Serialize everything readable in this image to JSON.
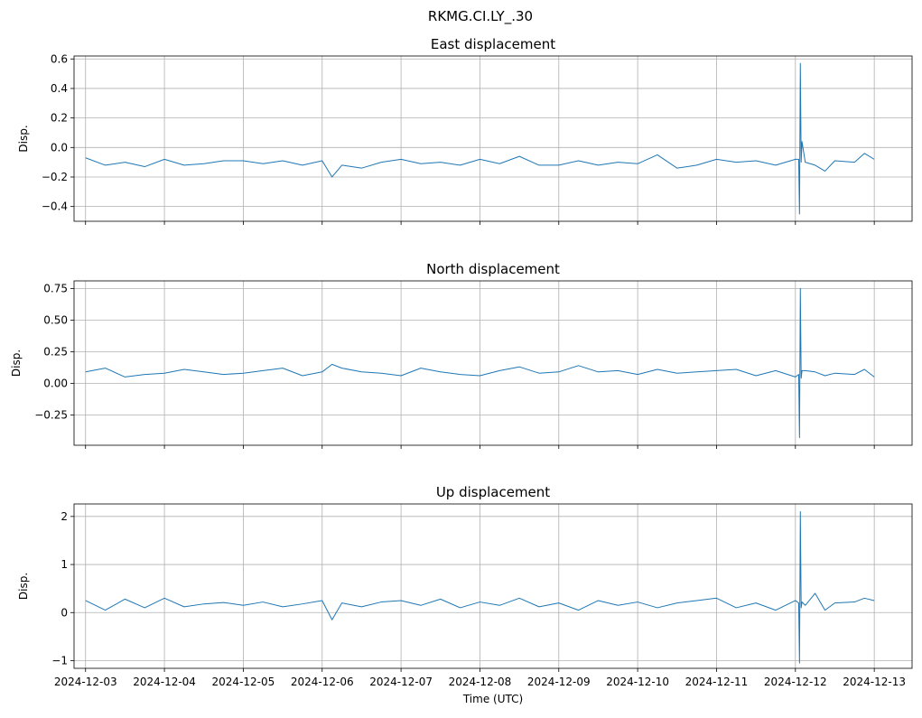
{
  "suptitle": "RKMG.CI.LY_.30",
  "chart_data": [
    {
      "type": "line",
      "title": "East displacement",
      "ylabel": "Disp.",
      "xlabel": "",
      "grid": true,
      "xlim": [
        "2024-12-02T20:30",
        "2024-12-13T11:30"
      ],
      "ylim": [
        -0.5,
        0.62
      ],
      "yticks": [
        -0.4,
        -0.2,
        0.0,
        0.2,
        0.4,
        0.6
      ],
      "ytick_labels": [
        "−0.4",
        "−0.2",
        "0.0",
        "0.2",
        "0.4",
        "0.6"
      ],
      "xticks": [
        "2024-12-03",
        "2024-12-04",
        "2024-12-05",
        "2024-12-06",
        "2024-12-07",
        "2024-12-08",
        "2024-12-09",
        "2024-12-10",
        "2024-12-11",
        "2024-12-12",
        "2024-12-13"
      ],
      "xtick_labels": [],
      "series_color": "#1f77b4",
      "series": [
        {
          "x": [
            "2024-12-03T00:00",
            "2024-12-03T06:00",
            "2024-12-03T12:00",
            "2024-12-03T18:00",
            "2024-12-04T00:00",
            "2024-12-04T06:00",
            "2024-12-04T12:00",
            "2024-12-04T18:00",
            "2024-12-05T00:00",
            "2024-12-05T06:00",
            "2024-12-05T12:00",
            "2024-12-05T18:00",
            "2024-12-06T00:00",
            "2024-12-06T03:00",
            "2024-12-06T06:00",
            "2024-12-06T12:00",
            "2024-12-06T18:00",
            "2024-12-07T00:00",
            "2024-12-07T06:00",
            "2024-12-07T12:00",
            "2024-12-07T18:00",
            "2024-12-08T00:00",
            "2024-12-08T06:00",
            "2024-12-08T12:00",
            "2024-12-08T18:00",
            "2024-12-09T00:00",
            "2024-12-09T06:00",
            "2024-12-09T12:00",
            "2024-12-09T18:00",
            "2024-12-10T00:00",
            "2024-12-10T06:00",
            "2024-12-10T12:00",
            "2024-12-10T18:00",
            "2024-12-11T00:00",
            "2024-12-11T06:00",
            "2024-12-11T12:00",
            "2024-12-11T18:00",
            "2024-12-12T00:00",
            "2024-12-12T01:00",
            "2024-12-12T01:15",
            "2024-12-12T01:30",
            "2024-12-12T01:45",
            "2024-12-12T02:00",
            "2024-12-12T03:00",
            "2024-12-12T06:00",
            "2024-12-12T09:00",
            "2024-12-12T12:00",
            "2024-12-12T18:00",
            "2024-12-12T21:00",
            "2024-12-13T00:00"
          ],
          "values": [
            -0.07,
            -0.12,
            -0.1,
            -0.13,
            -0.08,
            -0.12,
            -0.11,
            -0.09,
            -0.09,
            -0.11,
            -0.09,
            -0.12,
            -0.09,
            -0.2,
            -0.12,
            -0.14,
            -0.1,
            -0.08,
            -0.11,
            -0.1,
            -0.12,
            -0.08,
            -0.11,
            -0.06,
            -0.12,
            -0.12,
            -0.09,
            -0.12,
            -0.1,
            -0.11,
            -0.05,
            -0.14,
            -0.12,
            -0.08,
            -0.1,
            -0.09,
            -0.12,
            -0.08,
            -0.08,
            -0.45,
            0.57,
            -0.1,
            0.04,
            -0.1,
            -0.12,
            -0.16,
            -0.09,
            -0.1,
            -0.04,
            -0.08
          ]
        }
      ]
    },
    {
      "type": "line",
      "title": "North displacement",
      "ylabel": "Disp.",
      "xlabel": "",
      "grid": true,
      "xlim": [
        "2024-12-02T20:30",
        "2024-12-13T11:30"
      ],
      "ylim": [
        -0.49,
        0.81
      ],
      "yticks": [
        -0.25,
        0.0,
        0.25,
        0.5,
        0.75
      ],
      "ytick_labels": [
        "−0.25",
        "0.00",
        "0.25",
        "0.50",
        "0.75"
      ],
      "xticks": [
        "2024-12-03",
        "2024-12-04",
        "2024-12-05",
        "2024-12-06",
        "2024-12-07",
        "2024-12-08",
        "2024-12-09",
        "2024-12-10",
        "2024-12-11",
        "2024-12-12",
        "2024-12-13"
      ],
      "xtick_labels": [],
      "series_color": "#1f77b4",
      "series": [
        {
          "x": [
            "2024-12-03T00:00",
            "2024-12-03T06:00",
            "2024-12-03T12:00",
            "2024-12-03T18:00",
            "2024-12-04T00:00",
            "2024-12-04T06:00",
            "2024-12-04T12:00",
            "2024-12-04T18:00",
            "2024-12-05T00:00",
            "2024-12-05T06:00",
            "2024-12-05T12:00",
            "2024-12-05T18:00",
            "2024-12-06T00:00",
            "2024-12-06T03:00",
            "2024-12-06T06:00",
            "2024-12-06T12:00",
            "2024-12-06T18:00",
            "2024-12-07T00:00",
            "2024-12-07T06:00",
            "2024-12-07T12:00",
            "2024-12-07T18:00",
            "2024-12-08T00:00",
            "2024-12-08T06:00",
            "2024-12-08T12:00",
            "2024-12-08T18:00",
            "2024-12-09T00:00",
            "2024-12-09T06:00",
            "2024-12-09T12:00",
            "2024-12-09T18:00",
            "2024-12-10T00:00",
            "2024-12-10T06:00",
            "2024-12-10T12:00",
            "2024-12-10T18:00",
            "2024-12-11T00:00",
            "2024-12-11T06:00",
            "2024-12-11T12:00",
            "2024-12-11T18:00",
            "2024-12-12T00:00",
            "2024-12-12T01:00",
            "2024-12-12T01:15",
            "2024-12-12T01:30",
            "2024-12-12T01:45",
            "2024-12-12T02:00",
            "2024-12-12T03:00",
            "2024-12-12T06:00",
            "2024-12-12T09:00",
            "2024-12-12T12:00",
            "2024-12-12T18:00",
            "2024-12-12T21:00",
            "2024-12-13T00:00"
          ],
          "values": [
            0.09,
            0.12,
            0.05,
            0.07,
            0.08,
            0.11,
            0.09,
            0.07,
            0.08,
            0.1,
            0.12,
            0.06,
            0.09,
            0.15,
            0.12,
            0.09,
            0.08,
            0.06,
            0.12,
            0.09,
            0.07,
            0.06,
            0.1,
            0.13,
            0.08,
            0.09,
            0.14,
            0.09,
            0.1,
            0.07,
            0.11,
            0.08,
            0.09,
            0.1,
            0.11,
            0.06,
            0.1,
            0.05,
            0.07,
            -0.43,
            0.75,
            0.04,
            0.1,
            0.1,
            0.09,
            0.06,
            0.08,
            0.07,
            0.11,
            0.05
          ]
        }
      ]
    },
    {
      "type": "line",
      "title": "Up displacement",
      "ylabel": "Disp.",
      "xlabel": "Time (UTC)",
      "grid": true,
      "xlim": [
        "2024-12-02T20:30",
        "2024-12-13T11:30"
      ],
      "ylim": [
        -1.16,
        2.26
      ],
      "yticks": [
        -1,
        0,
        1,
        2
      ],
      "ytick_labels": [
        "−1",
        "0",
        "1",
        "2"
      ],
      "xticks": [
        "2024-12-03",
        "2024-12-04",
        "2024-12-05",
        "2024-12-06",
        "2024-12-07",
        "2024-12-08",
        "2024-12-09",
        "2024-12-10",
        "2024-12-11",
        "2024-12-12",
        "2024-12-13"
      ],
      "xtick_labels": [
        "2024-12-03",
        "2024-12-04",
        "2024-12-05",
        "2024-12-06",
        "2024-12-07",
        "2024-12-08",
        "2024-12-09",
        "2024-12-10",
        "2024-12-11",
        "2024-12-12",
        "2024-12-13"
      ],
      "series_color": "#1f77b4",
      "series": [
        {
          "x": [
            "2024-12-03T00:00",
            "2024-12-03T06:00",
            "2024-12-03T12:00",
            "2024-12-03T18:00",
            "2024-12-04T00:00",
            "2024-12-04T06:00",
            "2024-12-04T12:00",
            "2024-12-04T18:00",
            "2024-12-05T00:00",
            "2024-12-05T06:00",
            "2024-12-05T12:00",
            "2024-12-05T18:00",
            "2024-12-06T00:00",
            "2024-12-06T03:00",
            "2024-12-06T06:00",
            "2024-12-06T12:00",
            "2024-12-06T18:00",
            "2024-12-07T00:00",
            "2024-12-07T06:00",
            "2024-12-07T12:00",
            "2024-12-07T18:00",
            "2024-12-08T00:00",
            "2024-12-08T06:00",
            "2024-12-08T12:00",
            "2024-12-08T18:00",
            "2024-12-09T00:00",
            "2024-12-09T06:00",
            "2024-12-09T12:00",
            "2024-12-09T18:00",
            "2024-12-10T00:00",
            "2024-12-10T06:00",
            "2024-12-10T12:00",
            "2024-12-10T18:00",
            "2024-12-11T00:00",
            "2024-12-11T06:00",
            "2024-12-11T12:00",
            "2024-12-11T18:00",
            "2024-12-12T00:00",
            "2024-12-12T01:00",
            "2024-12-12T01:15",
            "2024-12-12T01:30",
            "2024-12-12T01:45",
            "2024-12-12T02:00",
            "2024-12-12T03:00",
            "2024-12-12T06:00",
            "2024-12-12T09:00",
            "2024-12-12T12:00",
            "2024-12-12T18:00",
            "2024-12-12T21:00",
            "2024-12-13T00:00"
          ],
          "values": [
            0.25,
            0.05,
            0.28,
            0.1,
            0.3,
            0.12,
            0.18,
            0.21,
            0.15,
            0.22,
            0.12,
            0.18,
            0.25,
            -0.15,
            0.2,
            0.12,
            0.22,
            0.25,
            0.15,
            0.28,
            0.1,
            0.22,
            0.15,
            0.3,
            0.12,
            0.2,
            0.05,
            0.25,
            0.15,
            0.22,
            0.1,
            0.2,
            0.25,
            0.3,
            0.1,
            0.2,
            0.05,
            0.25,
            0.2,
            -1.05,
            2.1,
            0.1,
            0.22,
            0.15,
            0.4,
            0.05,
            0.2,
            0.22,
            0.3,
            0.25
          ]
        }
      ]
    }
  ]
}
